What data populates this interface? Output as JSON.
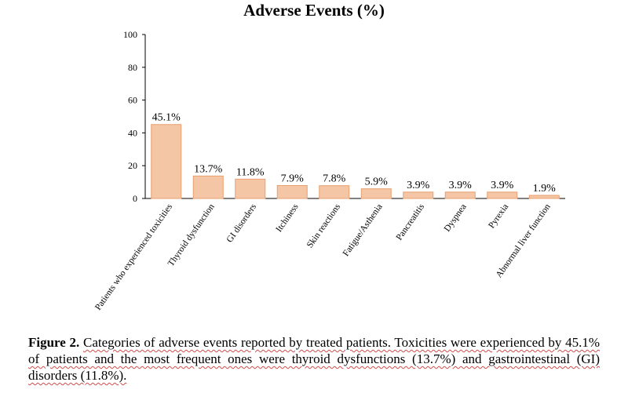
{
  "chart_data": {
    "type": "bar",
    "title": "Adverse Events (%)",
    "xlabel": "",
    "ylabel": "",
    "ylim": [
      0,
      100
    ],
    "yticks": [
      0,
      20,
      40,
      60,
      80,
      100
    ],
    "categories": [
      "Patients who experienced toxicities",
      "Thyroid dysfunction",
      "GI disorders",
      "Itchiness",
      "Skin reactions",
      "Fatigue/Asthenia",
      "Pancreatitis",
      "Dyspnea",
      "Pyrexia",
      "Abnormal liver function"
    ],
    "values": [
      45.1,
      13.7,
      11.8,
      7.9,
      7.8,
      5.9,
      3.9,
      3.9,
      3.9,
      1.9
    ],
    "data_labels": [
      "45.1%",
      "13.7%",
      "11.8%",
      "7.9%",
      "7.8%",
      "5.9%",
      "3.9%",
      "3.9%",
      "3.9%",
      "1.9%"
    ],
    "grid": false,
    "legend": "none",
    "bar_fill": "#f5c6a5",
    "bar_stroke": "#e8a070"
  },
  "caption": {
    "lead": "Figure 2.",
    "text": "Categories of adverse events reported by treated patients. Toxicities were experienced by 45.1% of patients and the most frequent ones were thyroid dysfunctions (13.7%) and  gastrointestinal (GI) disorders (11.8%)."
  }
}
